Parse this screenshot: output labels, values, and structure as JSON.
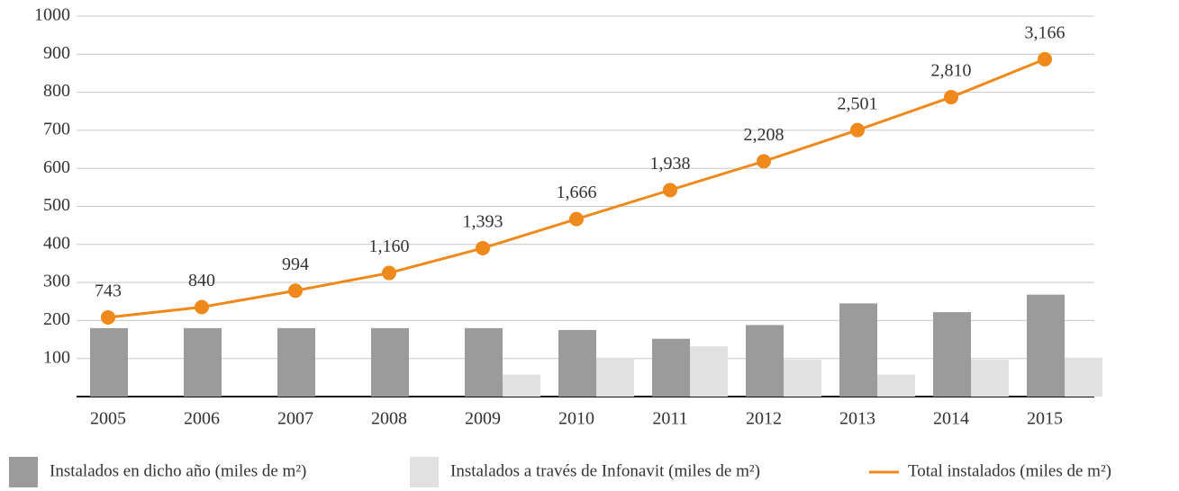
{
  "chart_data": {
    "type": "bar_line",
    "categories": [
      "2005",
      "2006",
      "2007",
      "2008",
      "2009",
      "2010",
      "2011",
      "2012",
      "2013",
      "2014",
      "2015"
    ],
    "series": [
      {
        "name": "Instalados en dicho año (miles de m²)",
        "type": "bar",
        "color": "#9b9b9b",
        "values": [
          180,
          180,
          180,
          180,
          180,
          175,
          152,
          188,
          245,
          222,
          268
        ]
      },
      {
        "name": "Instalados a través de Infonavit (miles de m²)",
        "type": "bar",
        "color": "#e1e1e1",
        "values": [
          null,
          null,
          null,
          null,
          58,
          102,
          132,
          97,
          58,
          97,
          102
        ]
      },
      {
        "name": "Total instalados (miles de m²)",
        "type": "line",
        "color": "#f0891c",
        "axis": "y2",
        "values": [
          743,
          840,
          994,
          1160,
          1393,
          1666,
          1938,
          2208,
          2501,
          2810,
          3166
        ],
        "value_labels": [
          "743",
          "840",
          "994",
          "1,160",
          "1,393",
          "1,666",
          "1,938",
          "2,208",
          "2,501",
          "2,810",
          "3,166"
        ]
      }
    ],
    "ylim": [
      0,
      1000
    ],
    "yticks": [
      100,
      200,
      300,
      400,
      500,
      600,
      700,
      800,
      900,
      1000
    ],
    "y2lim": [
      0,
      3570
    ],
    "grid": true,
    "legend": "bottom"
  }
}
